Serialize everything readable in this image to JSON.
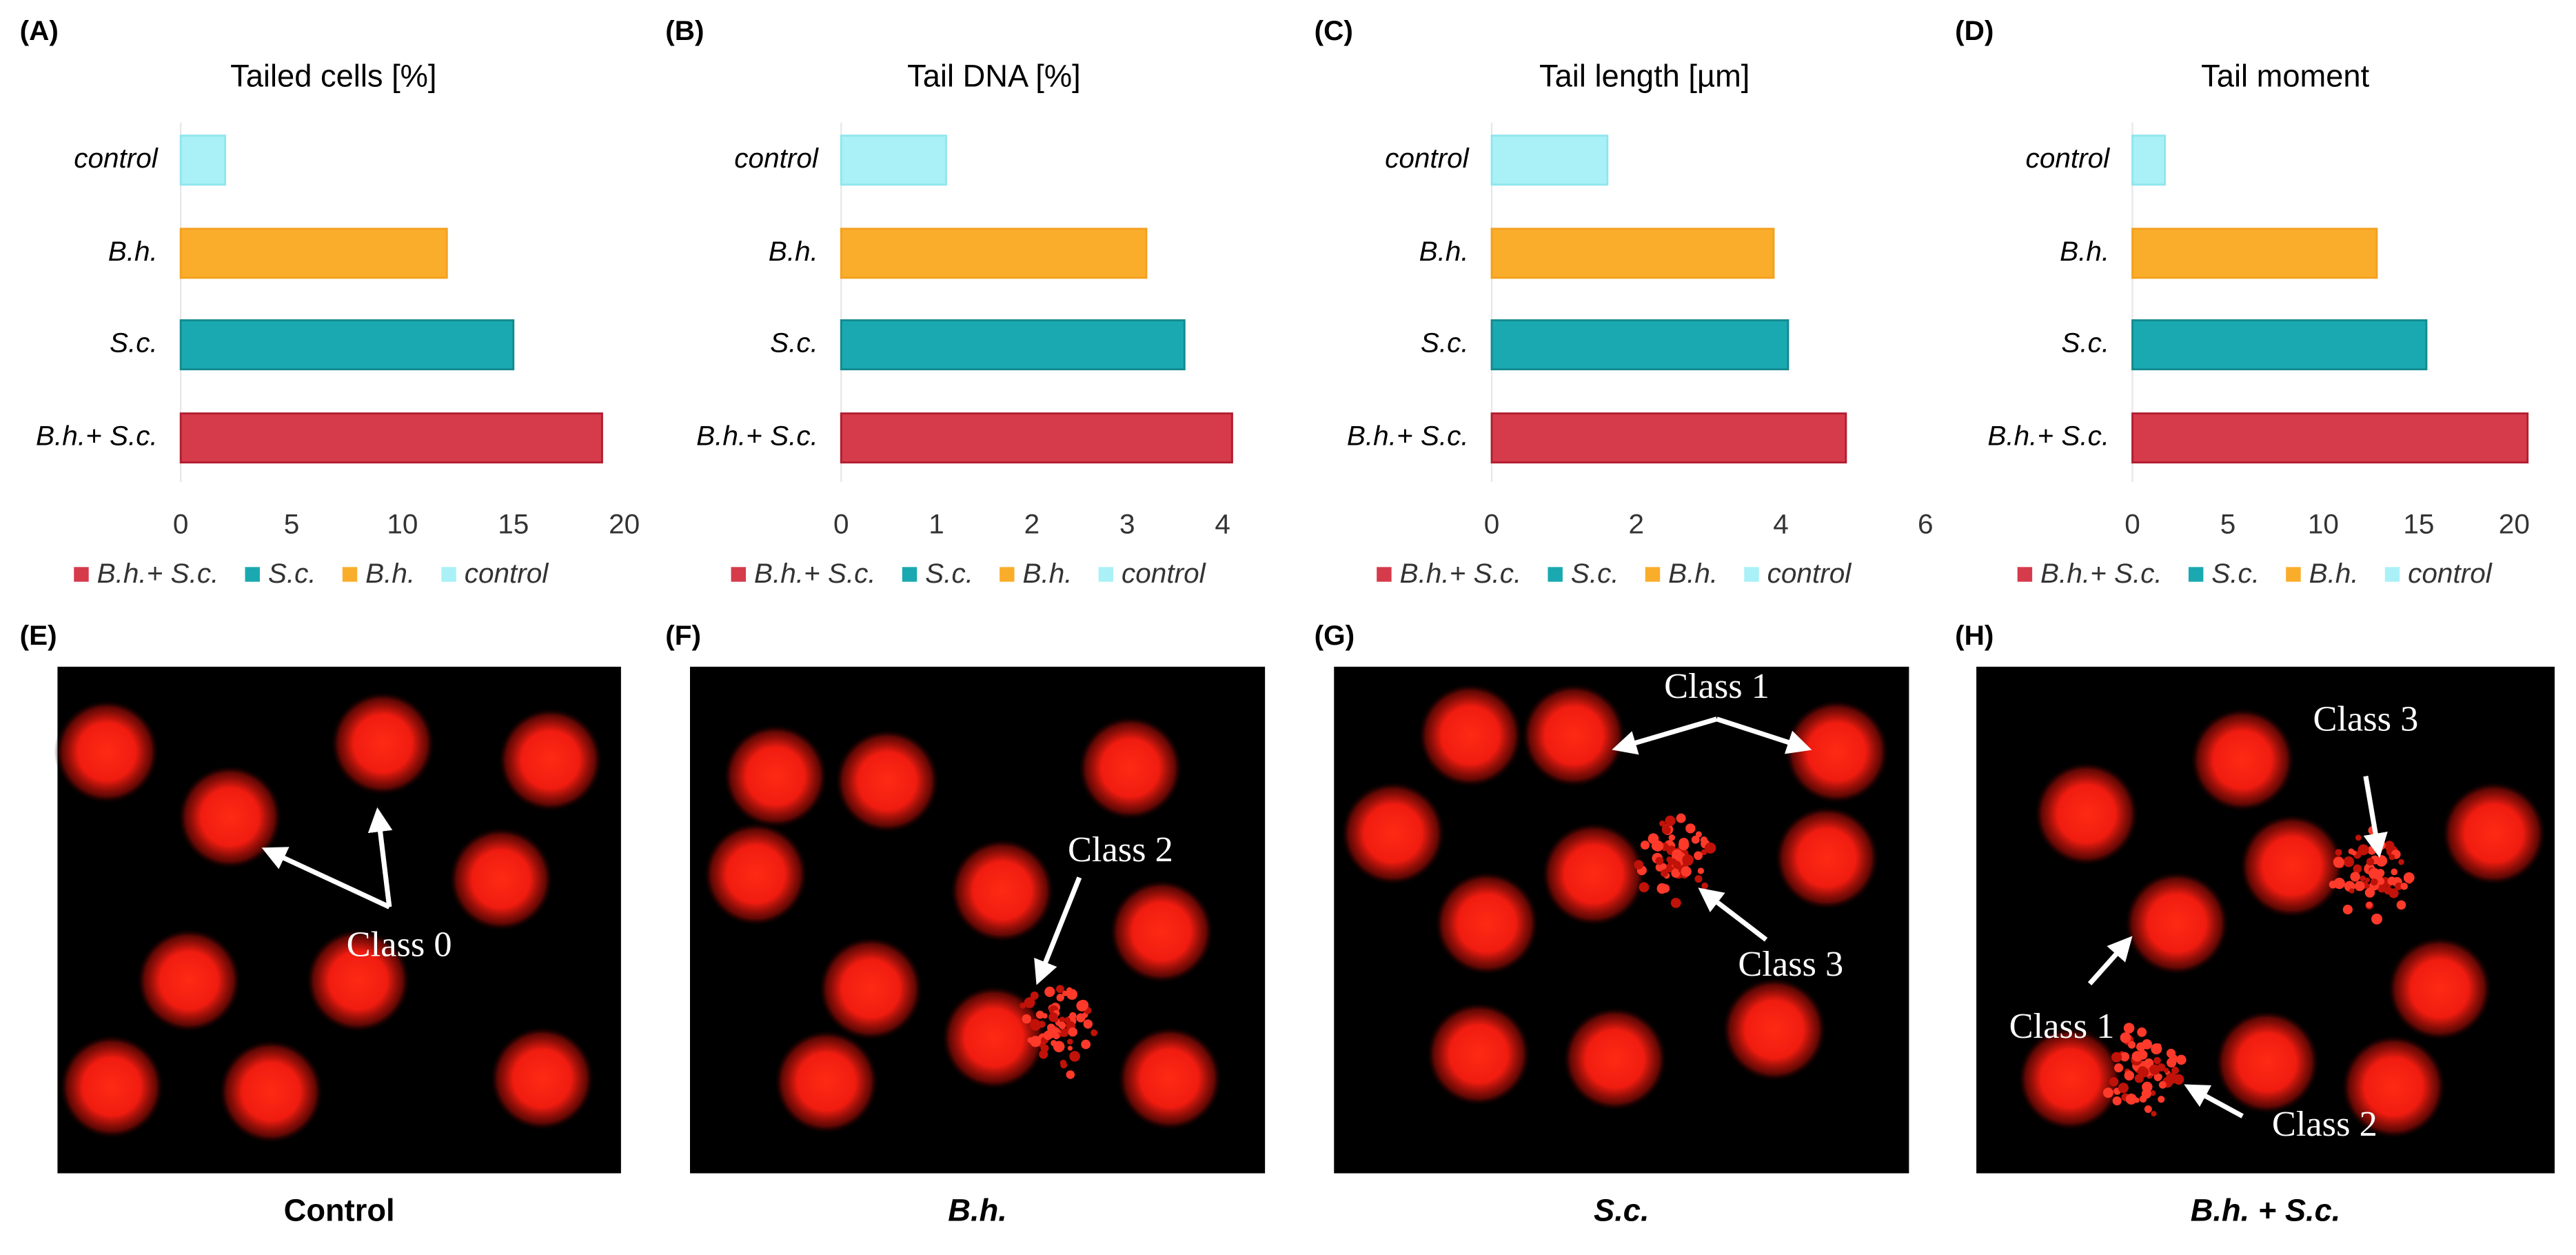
{
  "chart_data": [
    {
      "type": "bar",
      "orientation": "horizontal",
      "panel_label": "(A)",
      "title": "Tailed cells [%]",
      "categories": [
        "control",
        "B.h.",
        "S.c.",
        "B.h.+ S.c."
      ],
      "values": [
        2,
        12,
        15,
        19
      ],
      "colors": [
        "#a9f1f6",
        "#f9ad2a",
        "#1aa9b0",
        "#d63b4b"
      ],
      "xlim": [
        0,
        20
      ],
      "xticks": [
        0,
        5,
        10,
        15,
        20
      ]
    },
    {
      "type": "bar",
      "orientation": "horizontal",
      "panel_label": "(B)",
      "title": "Tail DNA [%]",
      "categories": [
        "control",
        "B.h.",
        "S.c.",
        "B.h.+ S.c."
      ],
      "values": [
        1.1,
        3.2,
        3.6,
        4.1
      ],
      "colors": [
        "#a9f1f6",
        "#f9ad2a",
        "#1aa9b0",
        "#d63b4b"
      ],
      "xlim": [
        0,
        4.1
      ],
      "xticks": [
        0,
        1,
        2,
        3,
        4
      ]
    },
    {
      "type": "bar",
      "orientation": "horizontal",
      "panel_label": "(C)",
      "title": "Tail length [µm]",
      "categories": [
        "control",
        "B.h.",
        "S.c.",
        "B.h.+ S.c."
      ],
      "values": [
        1.6,
        3.9,
        4.1,
        4.9
      ],
      "colors": [
        "#a9f1f6",
        "#f9ad2a",
        "#1aa9b0",
        "#d63b4b"
      ],
      "xlim": [
        0,
        6
      ],
      "xticks": [
        0,
        2,
        4,
        6
      ]
    },
    {
      "type": "bar",
      "orientation": "horizontal",
      "panel_label": "(D)",
      "title": "Tail moment",
      "categories": [
        "control",
        "B.h.",
        "S.c.",
        "B.h.+ S.c."
      ],
      "values": [
        1.7,
        12.8,
        15.4,
        20.7
      ],
      "colors": [
        "#a9f1f6",
        "#f9ad2a",
        "#1aa9b0",
        "#d63b4b"
      ],
      "xlim": [
        0,
        21
      ],
      "xticks": [
        0,
        5,
        10,
        15,
        20
      ]
    }
  ],
  "micrographs": [
    {
      "panel_label": "(E)",
      "caption": "Control",
      "annotations": [
        "Class 0"
      ]
    },
    {
      "panel_label": "(F)",
      "caption": "B.h.",
      "annotations": [
        "Class 2"
      ]
    },
    {
      "panel_label": "(G)",
      "caption": "S.c.",
      "annotations": [
        "Class 1",
        "Class 3"
      ]
    },
    {
      "panel_label": "(H)",
      "caption": "B.h. + S.c.",
      "annotations": [
        "Class 3",
        "Class 1",
        "Class 2"
      ]
    }
  ]
}
